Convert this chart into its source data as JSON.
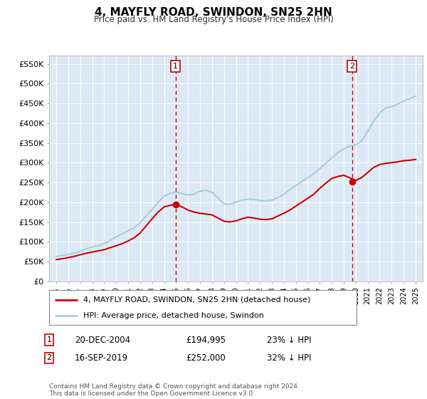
{
  "title": "4, MAYFLY ROAD, SWINDON, SN25 2HN",
  "subtitle": "Price paid vs. HM Land Registry's House Price Index (HPI)",
  "background_color": "#ffffff",
  "plot_bg_color": "#dce9f5",
  "ylim": [
    0,
    570000
  ],
  "yticks": [
    0,
    50000,
    100000,
    150000,
    200000,
    250000,
    300000,
    350000,
    400000,
    450000,
    500000,
    550000
  ],
  "ytick_labels": [
    "£0",
    "£50K",
    "£100K",
    "£150K",
    "£200K",
    "£250K",
    "£300K",
    "£350K",
    "£400K",
    "£450K",
    "£500K",
    "£550K"
  ],
  "hpi_color": "#a8cce0",
  "price_color": "#cc0000",
  "annotation1": [
    "1",
    "20-DEC-2004",
    "£194,995",
    "23% ↓ HPI"
  ],
  "annotation2": [
    "2",
    "16-SEP-2019",
    "£252,000",
    "32% ↓ HPI"
  ],
  "legend_line1": "4, MAYFLY ROAD, SWINDON, SN25 2HN (detached house)",
  "legend_line2": "HPI: Average price, detached house, Swindon",
  "footer": "Contains HM Land Registry data © Crown copyright and database right 2024.\nThis data is licensed under the Open Government Licence v3.0.",
  "hpi_data": {
    "years": [
      1995.0,
      1995.5,
      1996.0,
      1996.5,
      1997.0,
      1997.5,
      1998.0,
      1998.5,
      1999.0,
      1999.5,
      2000.0,
      2000.5,
      2001.0,
      2001.5,
      2002.0,
      2002.5,
      2003.0,
      2003.5,
      2004.0,
      2004.5,
      2005.0,
      2005.5,
      2006.0,
      2006.5,
      2007.0,
      2007.5,
      2008.0,
      2008.5,
      2009.0,
      2009.5,
      2010.0,
      2010.5,
      2011.0,
      2011.5,
      2012.0,
      2012.5,
      2013.0,
      2013.5,
      2014.0,
      2014.5,
      2015.0,
      2015.5,
      2016.0,
      2016.5,
      2017.0,
      2017.5,
      2018.0,
      2018.5,
      2019.0,
      2019.5,
      2020.0,
      2020.5,
      2021.0,
      2021.5,
      2022.0,
      2022.5,
      2023.0,
      2023.5,
      2024.0,
      2024.5,
      2025.0
    ],
    "values": [
      63000,
      65000,
      68000,
      71000,
      76000,
      82000,
      87000,
      90000,
      95000,
      103000,
      112000,
      120000,
      128000,
      135000,
      148000,
      165000,
      182000,
      200000,
      215000,
      222000,
      225000,
      222000,
      218000,
      220000,
      228000,
      230000,
      225000,
      210000,
      196000,
      195000,
      200000,
      205000,
      208000,
      207000,
      204000,
      203000,
      205000,
      212000,
      220000,
      232000,
      242000,
      252000,
      262000,
      272000,
      285000,
      298000,
      312000,
      325000,
      335000,
      342000,
      345000,
      355000,
      378000,
      405000,
      425000,
      438000,
      442000,
      448000,
      455000,
      462000,
      468000
    ]
  },
  "price_data": {
    "years": [
      1995.0,
      1995.5,
      1996.0,
      1996.5,
      1997.0,
      1997.5,
      1998.0,
      1998.5,
      1999.0,
      1999.5,
      2000.0,
      2000.5,
      2001.0,
      2001.5,
      2002.0,
      2002.5,
      2003.0,
      2003.5,
      2004.0,
      2004.5,
      2005.0,
      2005.5,
      2006.0,
      2006.5,
      2007.0,
      2007.5,
      2008.0,
      2008.5,
      2009.0,
      2009.5,
      2010.0,
      2010.5,
      2011.0,
      2011.5,
      2012.0,
      2012.5,
      2013.0,
      2013.5,
      2014.0,
      2014.5,
      2015.0,
      2015.5,
      2016.0,
      2016.5,
      2017.0,
      2017.5,
      2018.0,
      2018.5,
      2019.0,
      2019.5,
      2020.0,
      2020.5,
      2021.0,
      2021.5,
      2022.0,
      2022.5,
      2023.0,
      2023.5,
      2024.0,
      2024.5,
      2025.0
    ],
    "values": [
      55000,
      57000,
      60000,
      63000,
      67000,
      71000,
      74000,
      77000,
      80000,
      85000,
      90000,
      95000,
      102000,
      110000,
      122000,
      140000,
      158000,
      175000,
      188000,
      192000,
      195000,
      188000,
      180000,
      175000,
      172000,
      170000,
      168000,
      160000,
      152000,
      150000,
      153000,
      158000,
      162000,
      160000,
      157000,
      156000,
      158000,
      165000,
      172000,
      180000,
      190000,
      200000,
      210000,
      220000,
      235000,
      248000,
      260000,
      265000,
      268000,
      262000,
      255000,
      262000,
      275000,
      288000,
      295000,
      298000,
      300000,
      302000,
      305000,
      306000,
      308000
    ]
  },
  "vline1_year": 2004.95,
  "vline2_year": 2019.7,
  "dot1_year": 2004.95,
  "dot1_value": 194995,
  "dot2_year": 2019.7,
  "dot2_value": 252000
}
